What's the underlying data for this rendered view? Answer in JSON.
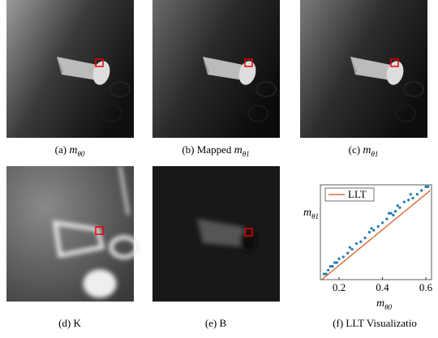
{
  "panels": [
    {
      "label": "(a)",
      "symbol": "m",
      "subscript": "θ0"
    },
    {
      "label": "(b) Mapped",
      "symbol": "m",
      "subscript": "θ1"
    },
    {
      "label": "(c)",
      "symbol": "m",
      "subscript": "θ1"
    },
    {
      "label": "(d) K"
    },
    {
      "label": "(e) B"
    },
    {
      "label": "(f)  LLT Visualizatio"
    }
  ],
  "chart_data": {
    "type": "scatter",
    "xlabel": {
      "symbol": "m",
      "subscript": "θ0"
    },
    "ylabel": {
      "symbol": "m",
      "subscript": "θ1"
    },
    "xlim": [
      0.114,
      0.626
    ],
    "ylim": [
      0.1,
      0.6
    ],
    "xticks": [
      0.2,
      0.4,
      0.6
    ],
    "legend": "upper left",
    "series": [
      {
        "color": "#1f77b4",
        "x": [
          0.13,
          0.14,
          0.15,
          0.16,
          0.17,
          0.18,
          0.19,
          0.2,
          0.22,
          0.24,
          0.26,
          0.28,
          0.3,
          0.32,
          0.34,
          0.36,
          0.38,
          0.4,
          0.42,
          0.44,
          0.45,
          0.46,
          0.48,
          0.5,
          0.52,
          0.54,
          0.56,
          0.58,
          0.6,
          0.61,
          0.25,
          0.35,
          0.43,
          0.47,
          0.53
        ],
        "values": [
          0.13,
          0.13,
          0.15,
          0.17,
          0.17,
          0.19,
          0.19,
          0.21,
          0.22,
          0.24,
          0.26,
          0.29,
          0.3,
          0.32,
          0.35,
          0.36,
          0.38,
          0.4,
          0.42,
          0.45,
          0.44,
          0.46,
          0.48,
          0.51,
          0.52,
          0.53,
          0.55,
          0.57,
          0.59,
          0.59,
          0.27,
          0.37,
          0.45,
          0.49,
          0.55
        ]
      },
      {
        "name": "LLT",
        "type": "line",
        "color": "#d95319",
        "x": [
          0.12,
          0.62
        ],
        "values": [
          0.1,
          0.57
        ]
      }
    ]
  }
}
